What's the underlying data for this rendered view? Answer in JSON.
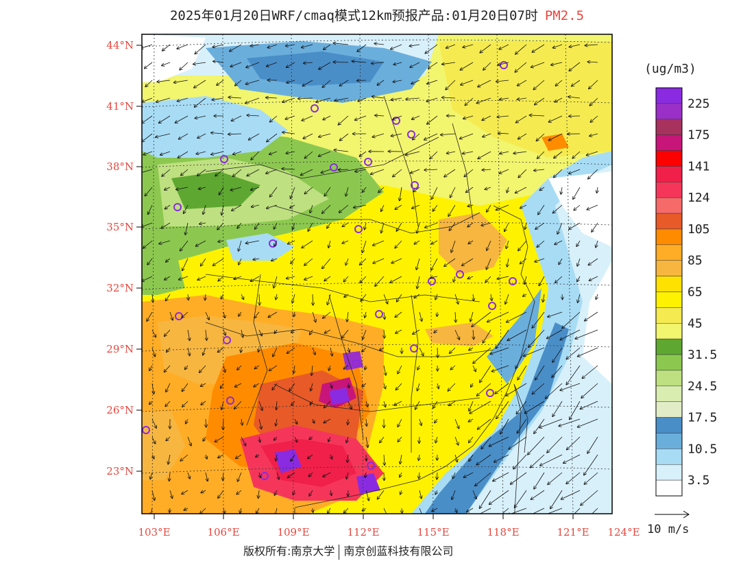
{
  "title": {
    "main": "2025年01月20日WRF/cmaq模式12km预报产品:01月20日07时",
    "pollutant": "PM2.5"
  },
  "axes": {
    "lat_labels": [
      "44°N",
      "41°N",
      "38°N",
      "35°N",
      "32°N",
      "29°N",
      "26°N",
      "23°N"
    ],
    "lon_labels": [
      "103°E",
      "106°E",
      "109°E",
      "112°E",
      "115°E",
      "118°E",
      "121°E",
      "124°E"
    ],
    "label_color": "#e8453c"
  },
  "legend": {
    "unit": "(ug/m3)",
    "bins": [
      {
        "label": "225",
        "color": "#8a2be2"
      },
      {
        "label": "",
        "color": "#9b30c9"
      },
      {
        "label": "175",
        "color": "#a8325e"
      },
      {
        "label": "",
        "color": "#c8157a"
      },
      {
        "label": "141",
        "color": "#ff0000"
      },
      {
        "label": "",
        "color": "#f0204a"
      },
      {
        "label": "124",
        "color": "#f5365a"
      },
      {
        "label": "",
        "color": "#f76a6a"
      },
      {
        "label": "105",
        "color": "#e85a28"
      },
      {
        "label": "",
        "color": "#ff8c00"
      },
      {
        "label": "85",
        "color": "#ffad26"
      },
      {
        "label": "",
        "color": "#f7b640"
      },
      {
        "label": "65",
        "color": "#ffe100"
      },
      {
        "label": "",
        "color": "#fff200"
      },
      {
        "label": "45",
        "color": "#f5eb50"
      },
      {
        "label": "",
        "color": "#f2f56e"
      },
      {
        "label": "31.5",
        "color": "#5ea832"
      },
      {
        "label": "",
        "color": "#8cc850"
      },
      {
        "label": "24.5",
        "color": "#bfe080"
      },
      {
        "label": "",
        "color": "#d9edb0"
      },
      {
        "label": "17.5",
        "color": "#e2edc8"
      },
      {
        "label": "",
        "color": "#4a8ec8"
      },
      {
        "label": "10.5",
        "color": "#6aaedc"
      },
      {
        "label": "",
        "color": "#a8dcf5"
      },
      {
        "label": "3.5",
        "color": "#d8f0fa"
      },
      {
        "label": "",
        "color": "#ffffff"
      }
    ]
  },
  "wind_reference": {
    "label": "10 m/s"
  },
  "footer": {
    "copyright": "版权所有:南京大学",
    "company": "南京创蓝科技有限公司"
  }
}
